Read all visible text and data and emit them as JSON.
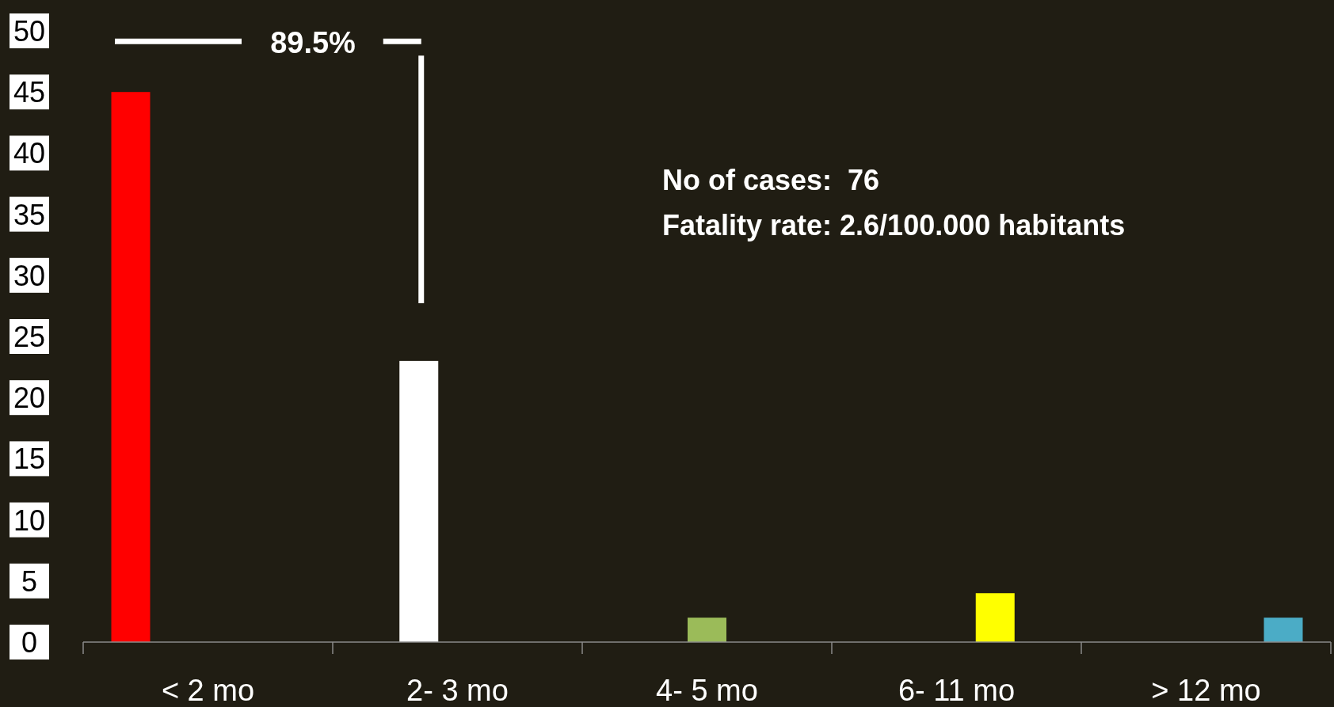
{
  "chart_data": {
    "type": "bar",
    "categories": [
      "< 2 mo",
      "2- 3 mo",
      "4- 5 mo",
      "6- 11 mo",
      "> 12 mo"
    ],
    "values": [
      45,
      23,
      2,
      4,
      2
    ],
    "colors": [
      "#ff0000",
      "#ffffff",
      "#9bbb59",
      "#ffff00",
      "#4bacc6"
    ],
    "ylim": [
      0,
      50
    ],
    "yticks": [
      0,
      5,
      10,
      15,
      20,
      25,
      30,
      35,
      40,
      45,
      50
    ],
    "grid": false,
    "annotations": [
      "89.5%",
      "No of cases:  76",
      "Fatality rate: 2.6/100.000 habitants"
    ]
  }
}
